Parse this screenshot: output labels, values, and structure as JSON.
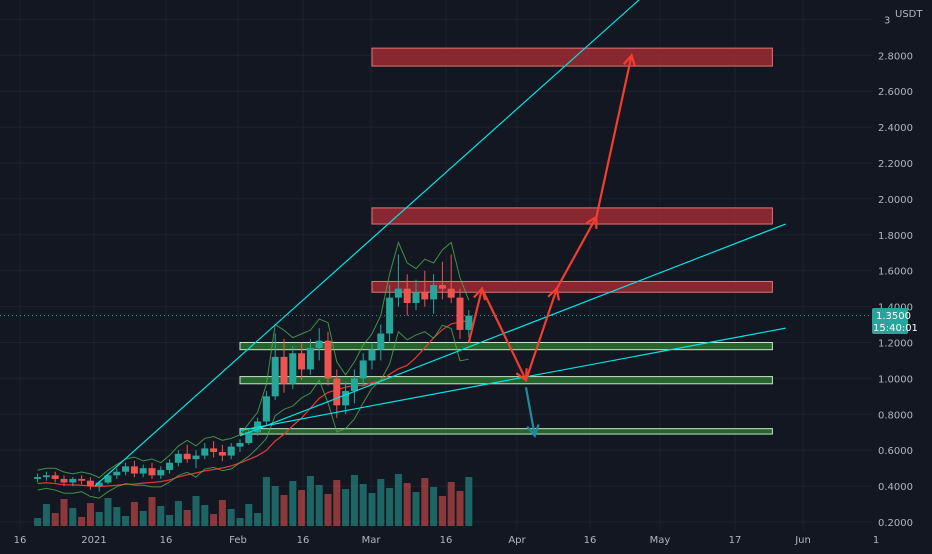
{
  "symbol": {
    "quote_currency": "USDT"
  },
  "price_axis": {
    "ticks": [
      "0.2000",
      "0.4000",
      "0.6000",
      "0.8000",
      "1.0000",
      "1.2000",
      "1.4000",
      "1.6000",
      "1.8000",
      "2.0000",
      "2.2000",
      "2.4000",
      "2.6000",
      "2.8000",
      "3"
    ]
  },
  "time_axis": {
    "ticks": [
      "16",
      "2021",
      "16",
      "Feb",
      "16",
      "Mar",
      "16",
      "Apr",
      "16",
      "May",
      "17",
      "Jun",
      "1"
    ]
  },
  "last_price": {
    "value": "1.3500",
    "countdown": "15:40:01",
    "color": "#26a69a"
  },
  "colors": {
    "background": "#131722",
    "up_candle": "#26a69a",
    "down_candle": "#ef5350",
    "resistance_zone": "#b22d35",
    "support_zone": "#2e7d32",
    "trendline": "#00e5e5",
    "projection_up": "#f23d2f",
    "projection_down": "#1e8ca0"
  },
  "chart_data": {
    "type": "candlestick",
    "y_unit": "USDT",
    "ylim": [
      0.18,
      3.0
    ],
    "x_range": [
      "2020-12-16",
      "2021-06-01"
    ],
    "grid": true,
    "resistance_zones": [
      {
        "low": 1.48,
        "high": 1.54
      },
      {
        "low": 1.86,
        "high": 1.95
      },
      {
        "low": 2.74,
        "high": 2.84
      }
    ],
    "support_zones": [
      {
        "low": 1.16,
        "high": 1.2
      },
      {
        "low": 0.97,
        "high": 1.01
      },
      {
        "low": 0.69,
        "high": 0.72
      }
    ],
    "trendlines": [
      {
        "from": [
          "2020-12-29",
          0.4
        ],
        "to": [
          "2021-05-15",
          3.4
        ]
      },
      {
        "from": [
          "2021-01-31",
          0.68
        ],
        "to": [
          "2021-06-04",
          1.86
        ]
      },
      {
        "from": [
          "2021-01-31",
          0.71
        ],
        "to": [
          "2021-06-04",
          1.28
        ]
      }
    ],
    "projection_up": [
      [
        "2021-03-24",
        1.2
      ],
      [
        "2021-03-27",
        1.5
      ],
      [
        "2021-04-06",
        0.99
      ],
      [
        "2021-04-13",
        1.5
      ],
      [
        "2021-04-22",
        1.9
      ],
      [
        "2021-04-30",
        2.8
      ]
    ],
    "projection_down": [
      [
        "2021-04-06",
        0.95
      ],
      [
        "2021-04-08",
        0.68
      ]
    ],
    "ohlc_approx": [
      [
        "2020-12-16",
        0.44,
        0.47,
        0.42,
        0.45
      ],
      [
        "2020-12-18",
        0.45,
        0.48,
        0.43,
        0.46
      ],
      [
        "2020-12-20",
        0.46,
        0.48,
        0.42,
        0.44
      ],
      [
        "2020-12-22",
        0.44,
        0.46,
        0.4,
        0.42
      ],
      [
        "2020-12-24",
        0.42,
        0.45,
        0.4,
        0.44
      ],
      [
        "2020-12-26",
        0.44,
        0.46,
        0.41,
        0.43
      ],
      [
        "2020-12-28",
        0.43,
        0.45,
        0.38,
        0.4
      ],
      [
        "2020-12-30",
        0.4,
        0.43,
        0.37,
        0.42
      ],
      [
        "2021-01-01",
        0.42,
        0.47,
        0.41,
        0.46
      ],
      [
        "2021-01-03",
        0.46,
        0.5,
        0.44,
        0.48
      ],
      [
        "2021-01-05",
        0.48,
        0.53,
        0.46,
        0.51
      ],
      [
        "2021-01-07",
        0.51,
        0.54,
        0.45,
        0.47
      ],
      [
        "2021-01-09",
        0.47,
        0.52,
        0.45,
        0.5
      ],
      [
        "2021-01-11",
        0.5,
        0.53,
        0.44,
        0.46
      ],
      [
        "2021-01-13",
        0.46,
        0.51,
        0.44,
        0.49
      ],
      [
        "2021-01-15",
        0.49,
        0.55,
        0.47,
        0.53
      ],
      [
        "2021-01-17",
        0.53,
        0.6,
        0.51,
        0.58
      ],
      [
        "2021-01-19",
        0.58,
        0.63,
        0.53,
        0.55
      ],
      [
        "2021-01-21",
        0.55,
        0.6,
        0.5,
        0.57
      ],
      [
        "2021-01-23",
        0.57,
        0.64,
        0.55,
        0.61
      ],
      [
        "2021-01-25",
        0.61,
        0.65,
        0.56,
        0.59
      ],
      [
        "2021-01-27",
        0.59,
        0.63,
        0.54,
        0.57
      ],
      [
        "2021-01-29",
        0.57,
        0.64,
        0.55,
        0.62
      ],
      [
        "2021-01-31",
        0.62,
        0.66,
        0.59,
        0.64
      ],
      [
        "2021-02-02",
        0.64,
        0.72,
        0.63,
        0.7
      ],
      [
        "2021-02-04",
        0.7,
        0.78,
        0.68,
        0.76
      ],
      [
        "2021-02-06",
        0.76,
        0.93,
        0.74,
        0.9
      ],
      [
        "2021-02-08",
        0.9,
        1.25,
        0.88,
        1.12
      ],
      [
        "2021-02-10",
        1.12,
        1.22,
        0.92,
        0.97
      ],
      [
        "2021-02-12",
        0.97,
        1.18,
        0.94,
        1.14
      ],
      [
        "2021-02-14",
        1.14,
        1.2,
        0.99,
        1.05
      ],
      [
        "2021-02-16",
        1.05,
        1.22,
        1.02,
        1.17
      ],
      [
        "2021-02-18",
        1.17,
        1.28,
        1.1,
        1.21
      ],
      [
        "2021-02-20",
        1.21,
        1.26,
        0.96,
        1.0
      ],
      [
        "2021-02-22",
        1.0,
        1.05,
        0.78,
        0.85
      ],
      [
        "2021-02-24",
        0.85,
        0.98,
        0.8,
        0.93
      ],
      [
        "2021-02-26",
        0.93,
        1.05,
        0.86,
        1.0
      ],
      [
        "2021-02-28",
        1.0,
        1.14,
        0.96,
        1.1
      ],
      [
        "2021-03-02",
        1.1,
        1.2,
        1.05,
        1.16
      ],
      [
        "2021-03-04",
        1.16,
        1.3,
        1.1,
        1.25
      ],
      [
        "2021-03-06",
        1.25,
        1.52,
        1.2,
        1.45
      ],
      [
        "2021-03-08",
        1.45,
        1.69,
        1.4,
        1.5
      ],
      [
        "2021-03-10",
        1.5,
        1.58,
        1.35,
        1.42
      ],
      [
        "2021-03-12",
        1.42,
        1.55,
        1.38,
        1.48
      ],
      [
        "2021-03-14",
        1.48,
        1.6,
        1.4,
        1.44
      ],
      [
        "2021-03-16",
        1.44,
        1.58,
        1.36,
        1.52
      ],
      [
        "2021-03-18",
        1.52,
        1.65,
        1.44,
        1.5
      ],
      [
        "2021-03-20",
        1.5,
        1.69,
        1.42,
        1.45
      ],
      [
        "2021-03-22",
        1.45,
        1.5,
        1.22,
        1.27
      ],
      [
        "2021-03-24",
        1.27,
        1.38,
        1.23,
        1.35
      ]
    ]
  }
}
